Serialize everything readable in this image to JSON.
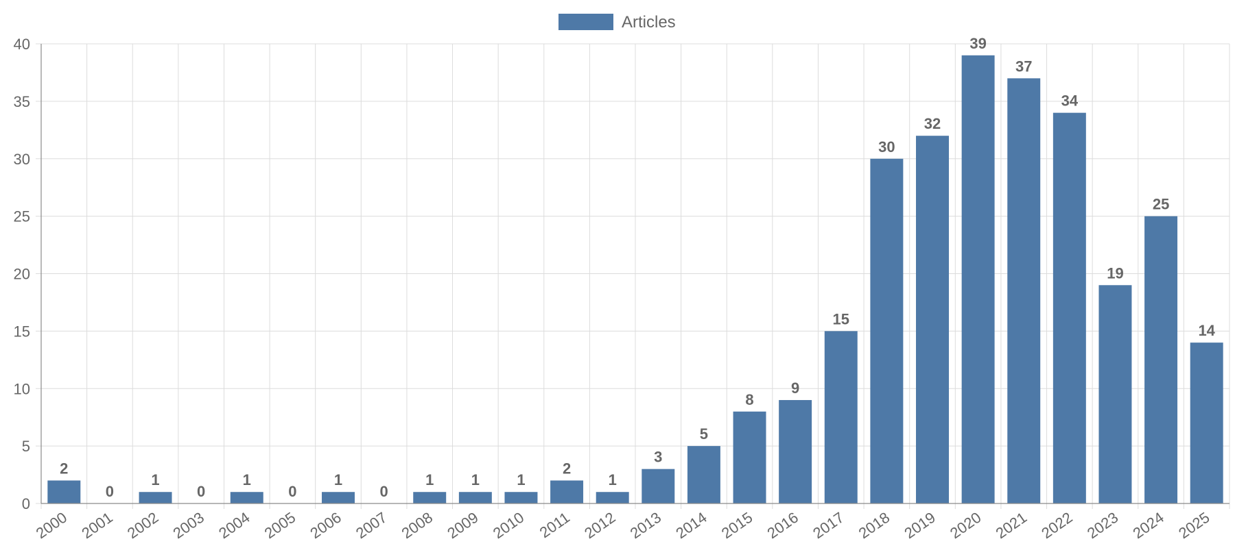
{
  "chart_data": {
    "type": "bar",
    "categories": [
      "2000",
      "2001",
      "2002",
      "2003",
      "2004",
      "2005",
      "2006",
      "2007",
      "2008",
      "2009",
      "2010",
      "2011",
      "2012",
      "2013",
      "2014",
      "2015",
      "2016",
      "2017",
      "2018",
      "2019",
      "2020",
      "2021",
      "2022",
      "2023",
      "2024",
      "2025"
    ],
    "series": [
      {
        "name": "Articles",
        "color": "#4e79a7",
        "values": [
          2,
          0,
          1,
          0,
          1,
          0,
          1,
          0,
          1,
          1,
          1,
          2,
          1,
          3,
          5,
          8,
          9,
          15,
          30,
          32,
          39,
          37,
          34,
          19,
          25,
          14
        ]
      }
    ],
    "title": "",
    "xlabel": "",
    "ylabel": "",
    "ylim": [
      0,
      40
    ],
    "yticks": [
      0,
      5,
      10,
      15,
      20,
      25,
      30,
      35,
      40
    ],
    "grid": true,
    "legend_position": "top-center",
    "data_labels": true
  }
}
